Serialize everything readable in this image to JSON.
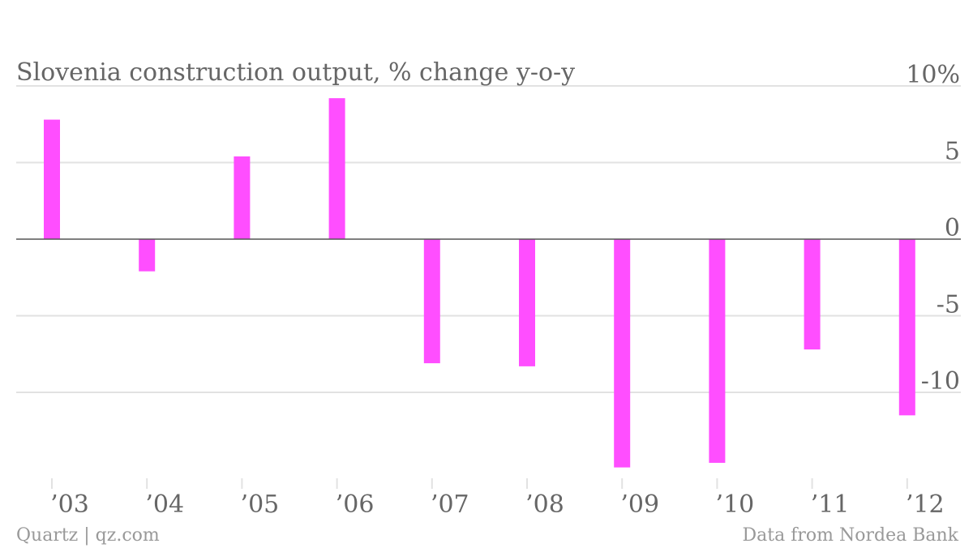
{
  "chart_data": {
    "type": "bar",
    "title": "Slovenia construction output, % change y-o-y",
    "categories": [
      "’03",
      "’04",
      "’05",
      "’06",
      "’07",
      "’08",
      "’09",
      "’10",
      "’11",
      "’12"
    ],
    "series": [
      {
        "values": [
          7.8,
          -2.1,
          5.4,
          9.2,
          -8.1,
          -8.3,
          -14.9,
          -14.6,
          -7.2,
          -11.5
        ]
      }
    ],
    "ylim": [
      -16,
      10
    ],
    "yticks": [
      10,
      5,
      0,
      -5,
      -10
    ],
    "ytick_labels": [
      "10%",
      "5",
      "0",
      "-5",
      "-10"
    ],
    "bar_color": "#ff4eff",
    "grid": true
  },
  "footer": {
    "source_left": "Quartz | qz.com",
    "source_right": "Data from Nordea Bank"
  }
}
